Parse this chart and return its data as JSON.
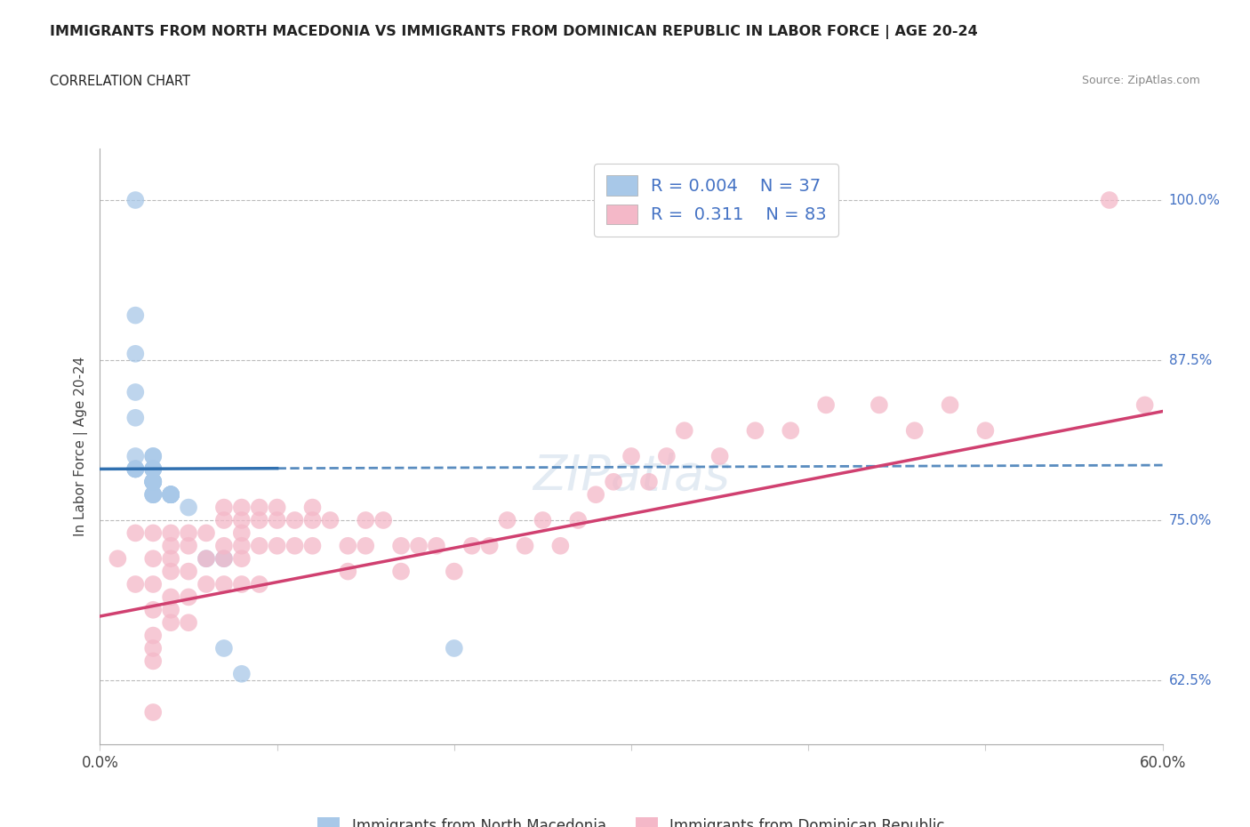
{
  "title": "IMMIGRANTS FROM NORTH MACEDONIA VS IMMIGRANTS FROM DOMINICAN REPUBLIC IN LABOR FORCE | AGE 20-24",
  "subtitle": "CORRELATION CHART",
  "source": "Source: ZipAtlas.com",
  "ylabel": "In Labor Force | Age 20-24",
  "xlim": [
    0.0,
    0.6
  ],
  "ylim": [
    0.575,
    1.04
  ],
  "ytick_right_labels": [
    "62.5%",
    "75.0%",
    "87.5%",
    "100.0%"
  ],
  "ytick_right_vals": [
    0.625,
    0.75,
    0.875,
    1.0
  ],
  "color_blue": "#a8c8e8",
  "color_pink": "#f4b8c8",
  "trend_blue": "#3070b0",
  "trend_pink": "#d04070",
  "legend_R1": "0.004",
  "legend_N1": "37",
  "legend_R2": "0.311",
  "legend_N2": "83",
  "blue_x": [
    0.02,
    0.02,
    0.02,
    0.02,
    0.02,
    0.02,
    0.03,
    0.03,
    0.03,
    0.03,
    0.03,
    0.03,
    0.03,
    0.03,
    0.03,
    0.03,
    0.03,
    0.03,
    0.03,
    0.03,
    0.03,
    0.04,
    0.04,
    0.04,
    0.04,
    0.04,
    0.04,
    0.05,
    0.06,
    0.07,
    0.07,
    0.08,
    0.2,
    0.02,
    0.02,
    0.02,
    0.02
  ],
  "blue_y": [
    1.0,
    0.91,
    0.88,
    0.85,
    0.83,
    0.8,
    0.8,
    0.8,
    0.79,
    0.79,
    0.79,
    0.79,
    0.78,
    0.78,
    0.78,
    0.78,
    0.78,
    0.78,
    0.77,
    0.77,
    0.77,
    0.77,
    0.77,
    0.77,
    0.77,
    0.77,
    0.77,
    0.76,
    0.72,
    0.72,
    0.65,
    0.63,
    0.65,
    0.79,
    0.79,
    0.79,
    0.79
  ],
  "pink_x": [
    0.01,
    0.02,
    0.02,
    0.03,
    0.03,
    0.03,
    0.03,
    0.03,
    0.03,
    0.03,
    0.03,
    0.04,
    0.04,
    0.04,
    0.04,
    0.04,
    0.04,
    0.04,
    0.05,
    0.05,
    0.05,
    0.05,
    0.05,
    0.06,
    0.06,
    0.06,
    0.07,
    0.07,
    0.07,
    0.07,
    0.07,
    0.08,
    0.08,
    0.08,
    0.08,
    0.08,
    0.08,
    0.09,
    0.09,
    0.09,
    0.09,
    0.1,
    0.1,
    0.1,
    0.11,
    0.11,
    0.12,
    0.12,
    0.12,
    0.13,
    0.14,
    0.14,
    0.15,
    0.15,
    0.16,
    0.17,
    0.17,
    0.18,
    0.19,
    0.2,
    0.21,
    0.22,
    0.23,
    0.24,
    0.25,
    0.26,
    0.27,
    0.28,
    0.29,
    0.3,
    0.31,
    0.32,
    0.33,
    0.35,
    0.37,
    0.39,
    0.41,
    0.44,
    0.46,
    0.48,
    0.5,
    0.57,
    0.59
  ],
  "pink_y": [
    0.72,
    0.74,
    0.7,
    0.74,
    0.72,
    0.7,
    0.68,
    0.66,
    0.65,
    0.64,
    0.6,
    0.74,
    0.73,
    0.72,
    0.71,
    0.69,
    0.68,
    0.67,
    0.74,
    0.73,
    0.71,
    0.69,
    0.67,
    0.74,
    0.72,
    0.7,
    0.76,
    0.75,
    0.73,
    0.72,
    0.7,
    0.76,
    0.75,
    0.74,
    0.73,
    0.72,
    0.7,
    0.76,
    0.75,
    0.73,
    0.7,
    0.76,
    0.75,
    0.73,
    0.75,
    0.73,
    0.76,
    0.75,
    0.73,
    0.75,
    0.73,
    0.71,
    0.75,
    0.73,
    0.75,
    0.73,
    0.71,
    0.73,
    0.73,
    0.71,
    0.73,
    0.73,
    0.75,
    0.73,
    0.75,
    0.73,
    0.75,
    0.77,
    0.78,
    0.8,
    0.78,
    0.8,
    0.82,
    0.8,
    0.82,
    0.82,
    0.84,
    0.84,
    0.82,
    0.84,
    0.82,
    1.0,
    0.84
  ]
}
